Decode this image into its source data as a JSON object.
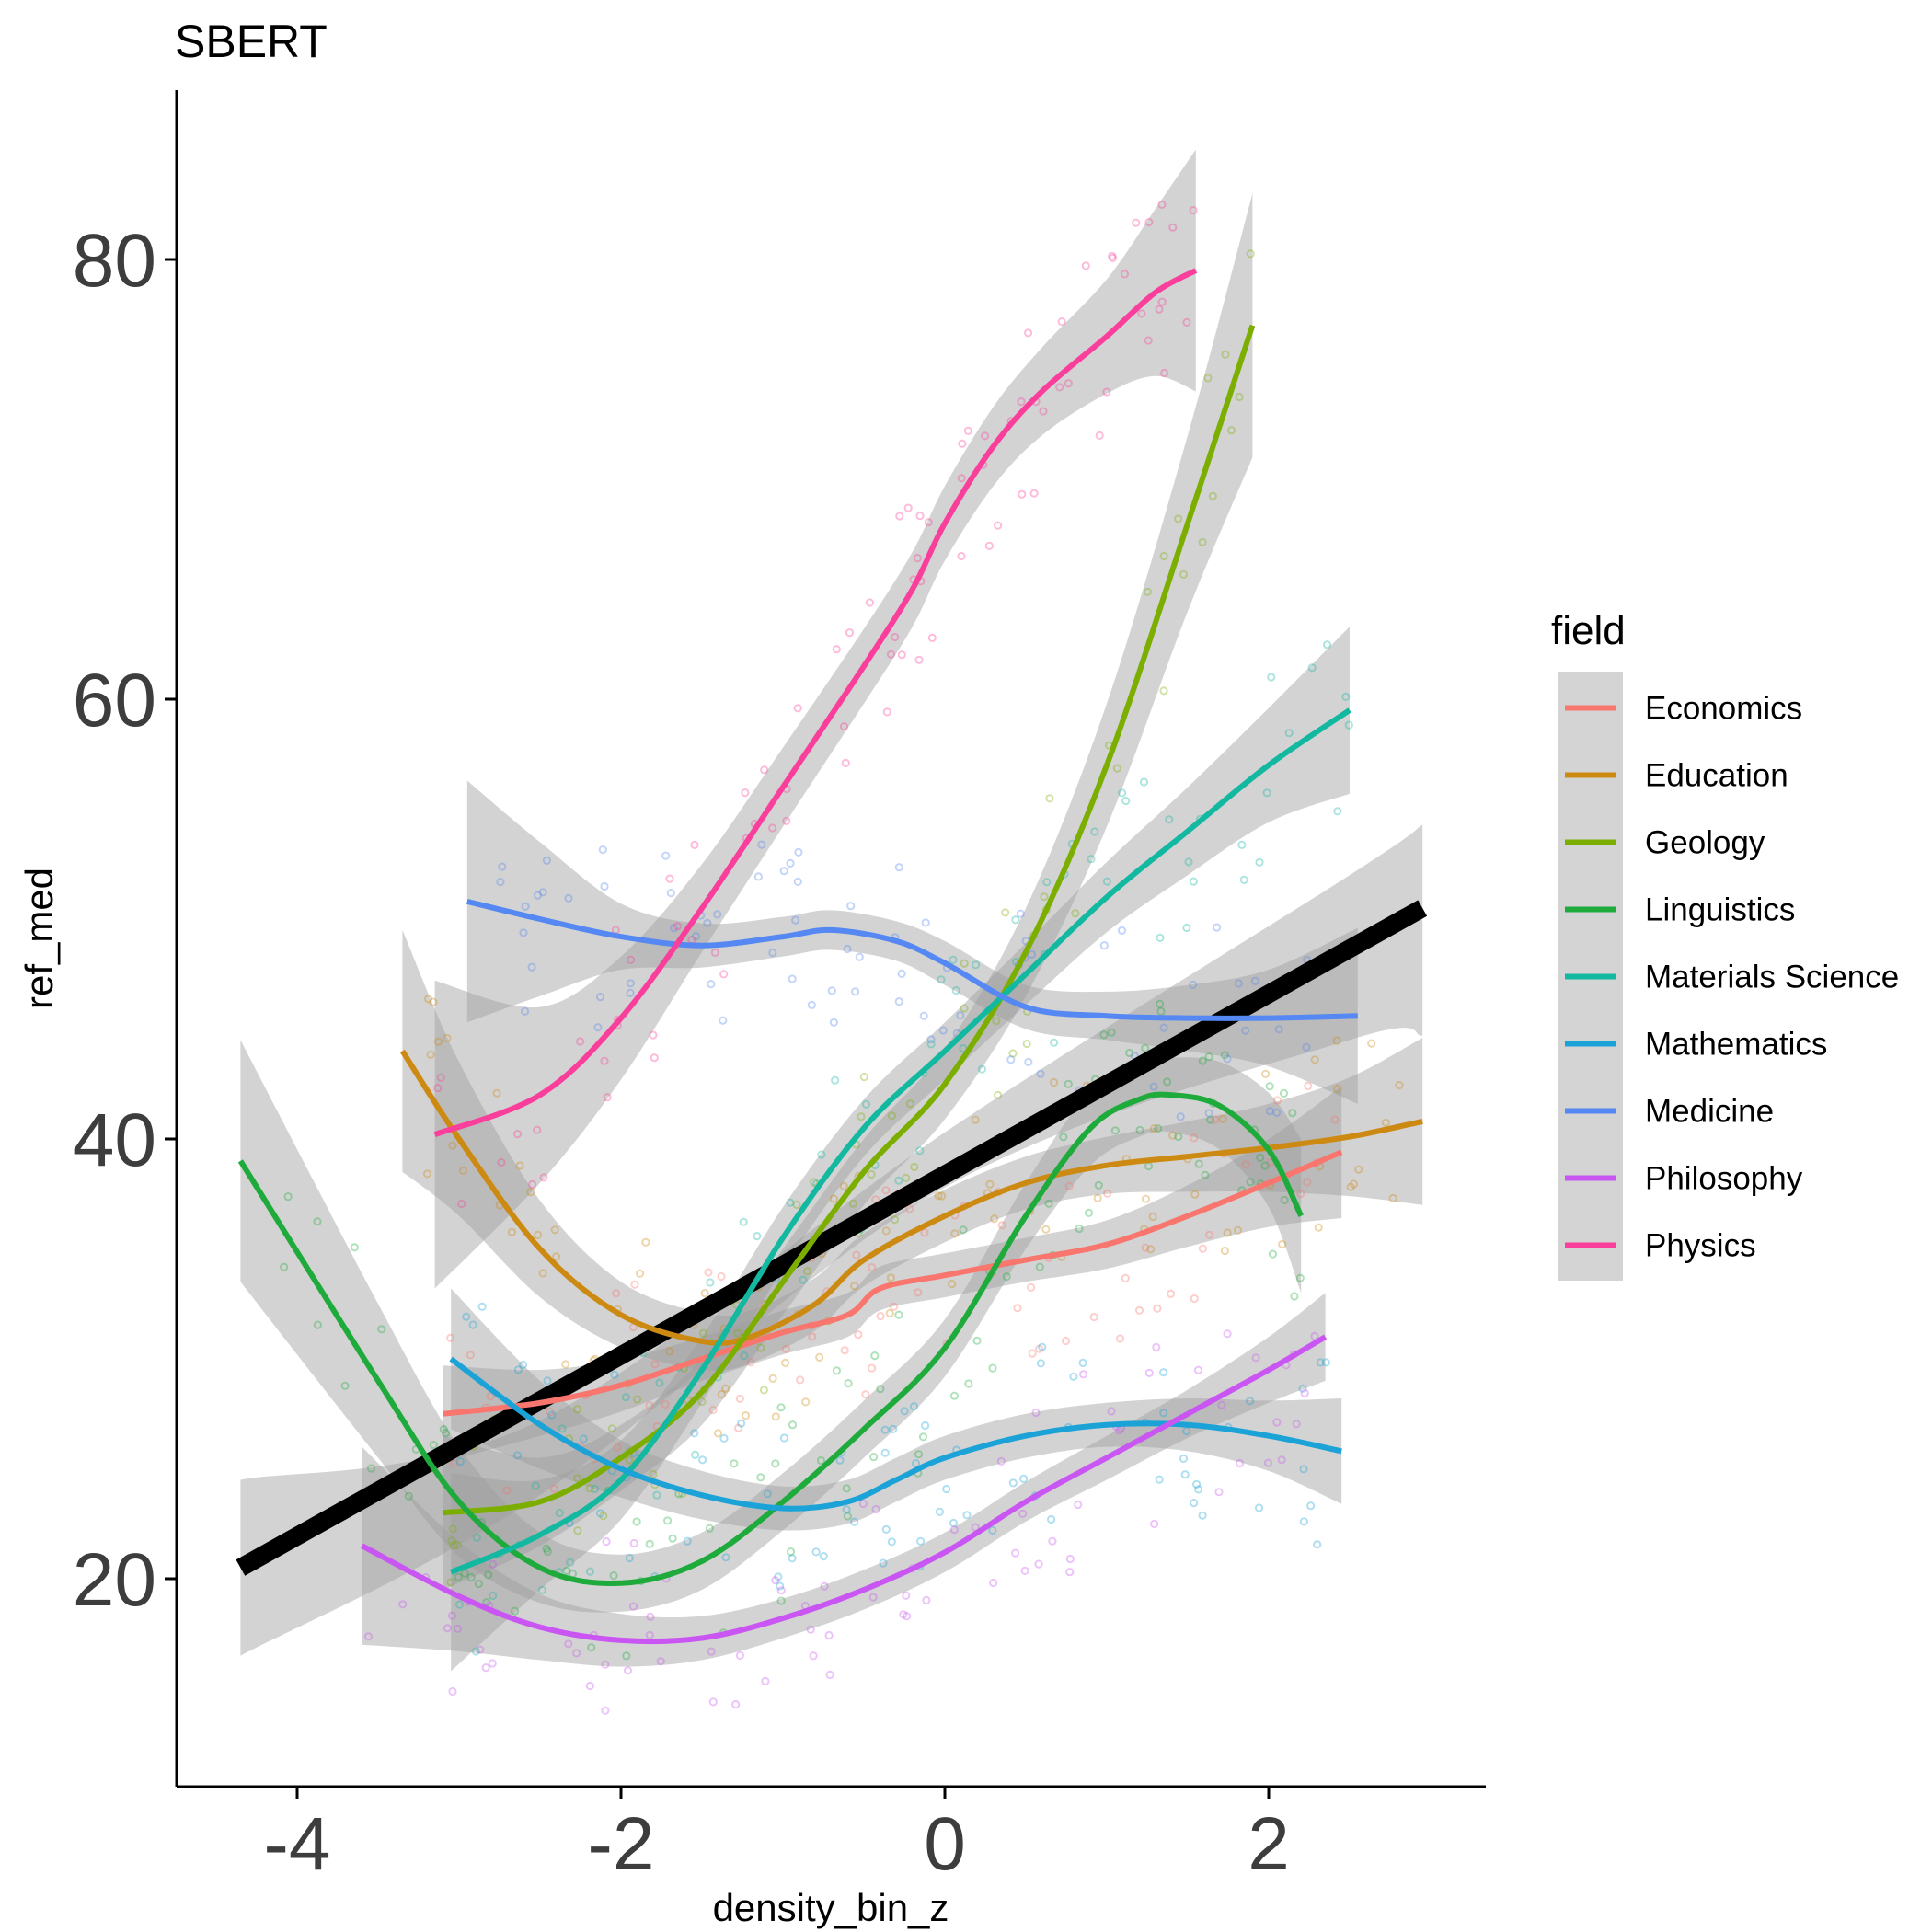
{
  "chart_data": {
    "type": "scatter",
    "title": "SBERT",
    "xlabel": "density_bin_z",
    "ylabel": "ref_med",
    "xlim": [
      -4.8,
      3.4
    ],
    "ylim": [
      10,
      88
    ],
    "x_ticks": [
      -4,
      -2,
      0,
      2
    ],
    "y_ticks": [
      20,
      40,
      60,
      80
    ],
    "grid": false,
    "legend": {
      "title": "field",
      "position": "right"
    },
    "overall_fit": {
      "color": "#000000",
      "x": [
        -4.35,
        2.95
      ],
      "y": [
        20.5,
        50.5
      ],
      "band": {
        "x": [
          -4.35,
          -2.5,
          0,
          2.5,
          2.95
        ],
        "lower": [
          16.5,
          23.8,
          37.8,
          44.5,
          44.7
        ],
        "upper": [
          24.5,
          27.2,
          40.3,
          52.0,
          54.3
        ]
      }
    },
    "series": [
      {
        "name": "Economics",
        "color": "#F8766D",
        "x": [
          -3.1,
          -2.5,
          -2.0,
          -1.5,
          -1.0,
          -0.6,
          -0.4,
          0,
          0.5,
          1.0,
          1.5,
          2.0,
          2.45
        ],
        "y": [
          27.5,
          28.0,
          28.8,
          30.0,
          31.2,
          32.0,
          33.2,
          33.8,
          34.5,
          35.2,
          36.5,
          38.0,
          39.4
        ],
        "band": [
          2.2,
          1.5,
          1.2,
          1.0,
          1.0,
          1.0,
          1.0,
          1.0,
          1.0,
          1.1,
          1.4,
          2.0,
          3.0
        ]
      },
      {
        "name": "Education",
        "color": "#CD8A12",
        "x": [
          -3.35,
          -3.0,
          -2.5,
          -2.0,
          -1.5,
          -1.2,
          -0.8,
          -0.5,
          0,
          0.5,
          1.0,
          1.5,
          2.0,
          2.5,
          2.95
        ],
        "y": [
          44.0,
          40.0,
          35.0,
          32.0,
          30.8,
          31.0,
          32.5,
          34.5,
          36.5,
          38.0,
          38.8,
          39.2,
          39.6,
          40.1,
          40.8
        ],
        "band": [
          5.5,
          3.5,
          2.2,
          1.5,
          1.3,
          1.2,
          1.2,
          1.2,
          1.2,
          1.2,
          1.3,
          1.6,
          2.0,
          2.7,
          3.8
        ]
      },
      {
        "name": "Geology",
        "color": "#7CAE00",
        "x": [
          -3.1,
          -2.5,
          -2.0,
          -1.5,
          -1.0,
          -0.5,
          0,
          0.5,
          1.0,
          1.5,
          1.9
        ],
        "y": [
          23.0,
          23.5,
          25.5,
          28.5,
          33.5,
          38.5,
          42.5,
          48.5,
          57.0,
          68.0,
          77.0
        ],
        "band": [
          3.5,
          2.0,
          1.5,
          1.5,
          1.5,
          1.5,
          1.6,
          2.0,
          2.8,
          4.0,
          6.0
        ]
      },
      {
        "name": "Linguistics",
        "color": "#1EAB3C",
        "x": [
          -4.35,
          -3.5,
          -3.0,
          -2.5,
          -2.0,
          -1.5,
          -1.0,
          -0.5,
          0,
          0.5,
          0.9,
          1.2,
          1.4,
          1.7,
          2.0,
          2.2
        ],
        "y": [
          39.0,
          29.0,
          23.5,
          20.5,
          19.8,
          20.8,
          23.5,
          26.8,
          30.5,
          36.5,
          40.5,
          41.8,
          42.0,
          41.5,
          39.5,
          36.5
        ],
        "band": [
          5.5,
          3.5,
          2.5,
          1.6,
          1.3,
          1.3,
          1.3,
          1.3,
          1.3,
          1.5,
          1.7,
          1.7,
          1.7,
          2.0,
          2.6,
          3.5
        ]
      },
      {
        "name": "Materials Science",
        "color": "#12B8A0",
        "x": [
          -3.05,
          -2.5,
          -2.0,
          -1.5,
          -1.0,
          -0.5,
          0,
          0.5,
          1.0,
          1.5,
          2.0,
          2.5
        ],
        "y": [
          20.3,
          22.0,
          24.5,
          29.5,
          35.5,
          40.5,
          44.0,
          47.5,
          51.0,
          54.0,
          57.0,
          59.5
        ],
        "band": [
          4.5,
          2.5,
          1.8,
          1.5,
          1.4,
          1.3,
          1.3,
          1.4,
          1.6,
          2.0,
          2.6,
          3.8
        ]
      },
      {
        "name": "Mathematics",
        "color": "#1BA3D8",
        "x": [
          -3.05,
          -2.5,
          -2.0,
          -1.5,
          -1.0,
          -0.6,
          -0.3,
          0,
          0.5,
          1.0,
          1.5,
          2.0,
          2.45
        ],
        "y": [
          30.0,
          27.0,
          25.0,
          23.8,
          23.2,
          23.5,
          24.5,
          25.5,
          26.5,
          27.0,
          27.0,
          26.5,
          25.8
        ],
        "band": [
          3.2,
          2.0,
          1.3,
          1.1,
          1.0,
          1.0,
          1.0,
          1.0,
          1.0,
          1.0,
          1.2,
          1.6,
          2.4
        ]
      },
      {
        "name": "Medicine",
        "color": "#5588F2",
        "x": [
          -2.95,
          -2.5,
          -2.0,
          -1.5,
          -1.0,
          -0.7,
          -0.3,
          0,
          0.5,
          1.0,
          1.5,
          2.0,
          2.55
        ],
        "y": [
          50.8,
          50.0,
          49.2,
          48.8,
          49.2,
          49.5,
          49.0,
          48.0,
          46.0,
          45.6,
          45.5,
          45.5,
          45.6
        ],
        "band": [
          5.5,
          3.5,
          1.5,
          1.0,
          0.9,
          0.9,
          0.9,
          1.0,
          1.0,
          1.1,
          1.5,
          2.2,
          4.0
        ]
      },
      {
        "name": "Philosophy",
        "color": "#C956F2",
        "x": [
          -3.6,
          -3.0,
          -2.5,
          -2.0,
          -1.5,
          -1.0,
          -0.5,
          0,
          0.5,
          1.0,
          1.5,
          2.0,
          2.35
        ],
        "y": [
          21.5,
          19.2,
          17.8,
          17.2,
          17.3,
          18.2,
          19.5,
          21.2,
          23.5,
          25.5,
          27.5,
          29.5,
          31.0
        ],
        "band": [
          4.5,
          2.5,
          1.5,
          1.2,
          1.0,
          0.9,
          0.9,
          0.9,
          0.9,
          1.0,
          1.1,
          1.5,
          2.0
        ]
      },
      {
        "name": "Physics",
        "color": "#FA3E9B",
        "x": [
          -3.15,
          -2.5,
          -2.0,
          -1.5,
          -1.0,
          -0.5,
          -0.2,
          0,
          0.3,
          0.6,
          1.0,
          1.3,
          1.55
        ],
        "y": [
          40.2,
          42.0,
          45.5,
          50.5,
          56.0,
          61.5,
          65.0,
          68.0,
          71.5,
          74.0,
          76.5,
          78.5,
          79.5
        ],
        "band": [
          7.0,
          4.0,
          2.8,
          2.0,
          1.8,
          1.7,
          1.7,
          1.7,
          1.8,
          2.0,
          2.6,
          3.8,
          5.5
        ]
      }
    ]
  }
}
